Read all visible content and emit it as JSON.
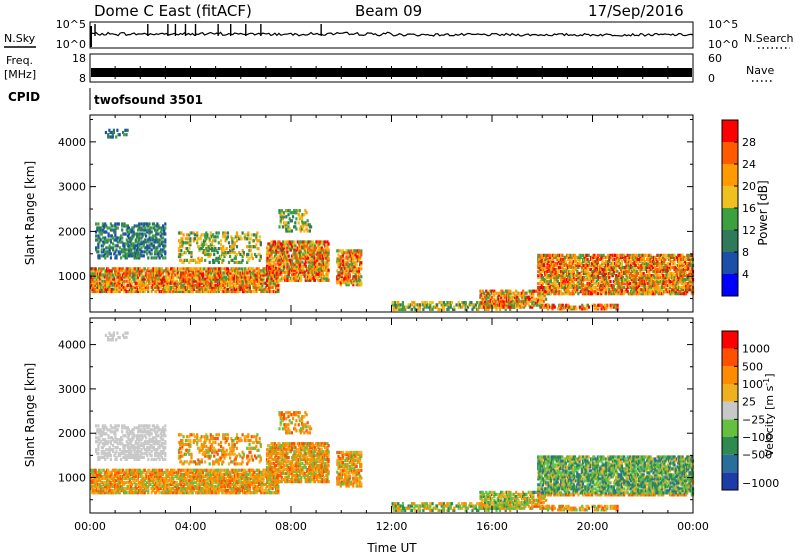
{
  "header": {
    "station": "Dome C East (fitACF)",
    "beam": "Beam 09",
    "date": "17/Sep/2016"
  },
  "side_labels": {
    "nsky": "N.Sky",
    "nsearch": "N.Search",
    "freq": "Freq.",
    "freq_unit": "[MHz]",
    "nave": "Nave",
    "cpid": "CPID"
  },
  "cpid_value": "twofsound 3501",
  "chart_data": [
    {
      "type": "line",
      "name": "noise",
      "left_ticks": [
        "10^5",
        "10^0"
      ],
      "right_ticks": [
        "10^5",
        "10^0"
      ]
    },
    {
      "type": "line",
      "name": "frequency",
      "left_ticks": [
        "18",
        "8"
      ],
      "right_ticks": [
        "60",
        "0"
      ]
    },
    {
      "type": "heatmap",
      "ylabel": "Slant Range [km]",
      "ylim": [
        200,
        4600
      ],
      "y_ticks": [
        1000,
        2000,
        3000,
        4000
      ],
      "colorbar_label": "Power [dB]",
      "colorbar_ticks": [
        "28",
        "24",
        "20",
        "16",
        "12",
        "8",
        "4"
      ],
      "colors": [
        "#0000ff",
        "#1c4fa8",
        "#2e7a5a",
        "#3ca040",
        "#f0c020",
        "#ff9a00",
        "#ff5a00",
        "#ff0000"
      ]
    },
    {
      "type": "heatmap",
      "ylabel": "Slant Range [km]",
      "ylim": [
        200,
        4600
      ],
      "y_ticks": [
        1000,
        2000,
        3000,
        4000
      ],
      "colorbar_label": "Velocity [m s",
      "colorbar_label_sup": "-1",
      "colorbar_label_end": "]",
      "colorbar_ticks": [
        "1000",
        "500",
        "100",
        "25",
        "−25",
        "−100",
        "−500",
        "−1000"
      ],
      "colors": [
        "#1e3ca8",
        "#2a6e9c",
        "#2e8a50",
        "#66c040",
        "#c8c8c8",
        "#f0b020",
        "#ff8c00",
        "#ff5000",
        "#ff0000"
      ]
    }
  ],
  "x_axis": {
    "label": "Time UT",
    "ticks": [
      "00:00",
      "04:00",
      "08:00",
      "12:00",
      "16:00",
      "20:00",
      "00:00"
    ]
  }
}
